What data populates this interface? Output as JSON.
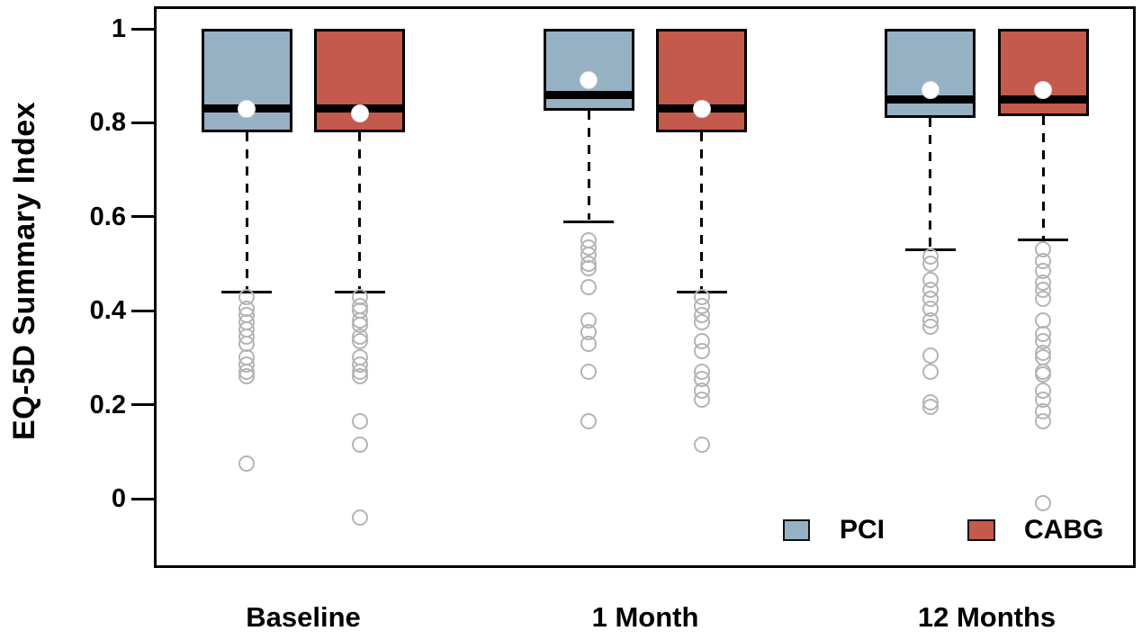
{
  "chart_data": {
    "type": "boxplot",
    "title": "",
    "ylabel": "EQ-5D Summary Index",
    "xlabel": "",
    "categories": [
      "Baseline",
      "1 Month",
      "12 Months"
    ],
    "yticks": [
      0,
      0.2,
      0.4,
      0.6,
      0.8,
      1
    ],
    "ylim": [
      -0.15,
      1.05
    ],
    "grid": false,
    "legend_position": "inside-bottom-right",
    "series": [
      {
        "name": "PCI",
        "color": "#96b1c4"
      },
      {
        "name": "CABG",
        "color": "#c35a4b"
      }
    ],
    "outlier_color": "#b4b4b4",
    "groups": [
      {
        "category": "Baseline",
        "boxes": [
          {
            "series": "PCI",
            "q1": 0.78,
            "median": 0.83,
            "q3": 1.0,
            "mean": 0.83,
            "whisker_low": 0.44,
            "whisker_high": 1.0,
            "outliers": [
              0.43,
              0.405,
              0.39,
              0.375,
              0.36,
              0.345,
              0.33,
              0.3,
              0.285,
              0.27,
              0.26,
              0.075
            ]
          },
          {
            "series": "CABG",
            "q1": 0.78,
            "median": 0.83,
            "q3": 1.0,
            "mean": 0.82,
            "whisker_low": 0.44,
            "whisker_high": 1.0,
            "outliers": [
              0.43,
              0.41,
              0.4,
              0.38,
              0.37,
              0.345,
              0.335,
              0.3,
              0.285,
              0.27,
              0.26,
              0.165,
              0.115,
              -0.04
            ]
          }
        ]
      },
      {
        "category": "1 Month",
        "boxes": [
          {
            "series": "PCI",
            "q1": 0.825,
            "median": 0.86,
            "q3": 1.0,
            "mean": 0.89,
            "whisker_low": 0.59,
            "whisker_high": 1.0,
            "outliers": [
              0.55,
              0.535,
              0.52,
              0.5,
              0.49,
              0.45,
              0.38,
              0.355,
              0.33,
              0.27,
              0.165
            ]
          },
          {
            "series": "CABG",
            "q1": 0.78,
            "median": 0.83,
            "q3": 1.0,
            "mean": 0.83,
            "whisker_low": 0.44,
            "whisker_high": 1.0,
            "outliers": [
              0.43,
              0.41,
              0.39,
              0.375,
              0.335,
              0.315,
              0.27,
              0.255,
              0.23,
              0.21,
              0.115
            ]
          }
        ]
      },
      {
        "category": "12 Months",
        "boxes": [
          {
            "series": "PCI",
            "q1": 0.81,
            "median": 0.85,
            "q3": 1.0,
            "mean": 0.87,
            "whisker_low": 0.53,
            "whisker_high": 1.0,
            "outliers": [
              0.515,
              0.5,
              0.465,
              0.445,
              0.425,
              0.405,
              0.38,
              0.365,
              0.305,
              0.27,
              0.205,
              0.195
            ]
          },
          {
            "series": "CABG",
            "q1": 0.815,
            "median": 0.85,
            "q3": 1.0,
            "mean": 0.87,
            "whisker_low": 0.55,
            "whisker_high": 1.0,
            "outliers": [
              0.53,
              0.505,
              0.485,
              0.46,
              0.445,
              0.425,
              0.38,
              0.35,
              0.335,
              0.31,
              0.3,
              0.27,
              0.265,
              0.23,
              0.21,
              0.185,
              0.165,
              -0.01
            ]
          }
        ]
      }
    ]
  }
}
